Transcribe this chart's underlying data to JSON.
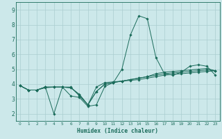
{
  "title": "",
  "xlabel": "Humidex (Indice chaleur)",
  "ylabel": "",
  "background_color": "#cce8ea",
  "grid_color": "#aacdd0",
  "line_color": "#1a6b5a",
  "xlim": [
    -0.5,
    23.5
  ],
  "ylim": [
    1.5,
    9.5
  ],
  "xticks": [
    0,
    1,
    2,
    3,
    4,
    5,
    6,
    7,
    8,
    9,
    10,
    11,
    12,
    13,
    14,
    15,
    16,
    17,
    18,
    19,
    20,
    21,
    22,
    23
  ],
  "yticks": [
    2,
    3,
    4,
    5,
    6,
    7,
    8,
    9
  ],
  "line1_x": [
    0,
    1,
    2,
    3,
    4,
    5,
    6,
    7,
    8,
    9,
    10,
    11,
    12,
    13,
    14,
    15,
    16,
    17,
    18,
    19,
    20,
    21,
    22,
    23
  ],
  "line1_y": [
    3.9,
    3.6,
    3.6,
    3.8,
    3.8,
    3.8,
    3.8,
    3.2,
    2.6,
    3.8,
    4.1,
    4.15,
    4.2,
    4.25,
    4.3,
    4.4,
    4.5,
    4.6,
    4.65,
    4.7,
    4.75,
    4.8,
    4.85,
    4.9
  ],
  "line2_x": [
    0,
    1,
    2,
    3,
    4,
    5,
    6,
    7,
    8,
    9,
    10,
    11,
    12,
    13,
    14,
    15,
    16,
    17,
    18,
    19,
    20,
    21,
    22,
    23
  ],
  "line2_y": [
    3.9,
    3.6,
    3.6,
    3.8,
    2.0,
    3.8,
    3.2,
    3.1,
    2.5,
    2.6,
    3.85,
    4.1,
    5.0,
    7.3,
    8.6,
    8.4,
    5.8,
    4.7,
    4.6,
    4.8,
    5.2,
    5.3,
    5.2,
    4.6
  ],
  "line3_x": [
    0,
    1,
    2,
    3,
    4,
    5,
    6,
    7,
    8,
    9,
    10,
    11,
    12,
    13,
    14,
    15,
    16,
    17,
    18,
    19,
    20,
    21,
    22,
    23
  ],
  "line3_y": [
    3.9,
    3.6,
    3.6,
    3.75,
    3.8,
    3.8,
    3.75,
    3.3,
    2.6,
    3.5,
    4.0,
    4.1,
    4.2,
    4.3,
    4.4,
    4.5,
    4.7,
    4.8,
    4.85,
    4.9,
    4.95,
    5.0,
    5.05,
    4.9
  ],
  "line4_x": [
    0,
    1,
    2,
    3,
    4,
    5,
    6,
    7,
    8,
    9,
    10,
    11,
    12,
    13,
    14,
    15,
    16,
    17,
    18,
    19,
    20,
    21,
    22,
    23
  ],
  "line4_y": [
    3.9,
    3.6,
    3.6,
    3.8,
    3.8,
    3.8,
    3.75,
    3.3,
    2.6,
    3.5,
    4.0,
    4.1,
    4.2,
    4.3,
    4.4,
    4.5,
    4.6,
    4.7,
    4.75,
    4.8,
    4.85,
    4.9,
    4.95,
    4.9
  ],
  "tick_fontsize_x": 4.2,
  "tick_fontsize_y": 5.5,
  "xlabel_fontsize": 5.8,
  "linewidth": 0.7,
  "markersize": 1.8
}
